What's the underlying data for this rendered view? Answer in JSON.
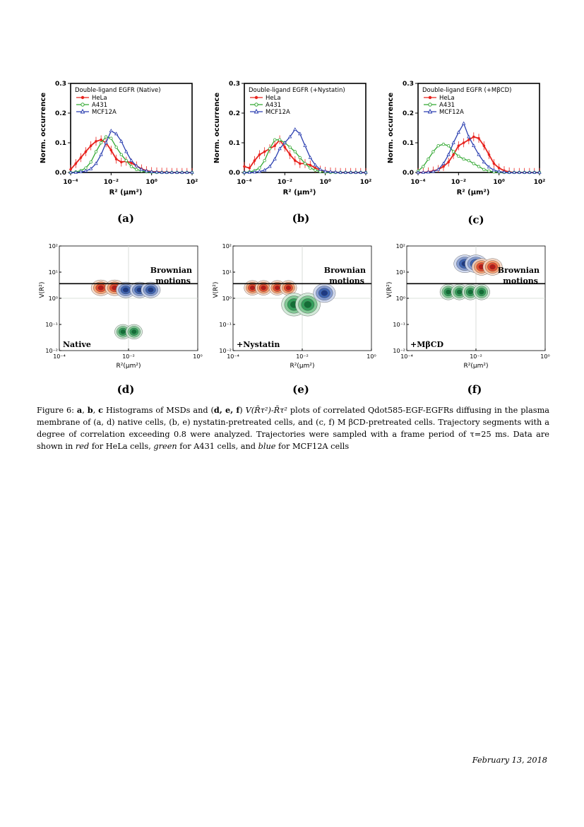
{
  "histograms": {
    "ylabel": "Norm. occurrence",
    "xlabel": "R² (μm²)",
    "yticks": [
      "0.0",
      "0.1",
      "0.2",
      "0.3"
    ],
    "xticks": [
      "10⁻⁴",
      "10⁻²",
      "10⁰",
      "10²"
    ],
    "legend": [
      "HeLa",
      "A431",
      "MCF12A"
    ],
    "colors": {
      "HeLa": "#e8241f",
      "A431": "#32a832",
      "MCF12A": "#2b3fb0"
    },
    "panels": [
      {
        "id": "a",
        "label": "(a)",
        "title": "Double-ligand EGFR (Native)"
      },
      {
        "id": "b",
        "label": "(b)",
        "title": "Double-ligand EGFR (+Nystatin)"
      },
      {
        "id": "c",
        "label": "(c)",
        "title": "Double-ligand EGFR (+MβCD)"
      }
    ]
  },
  "chart_data": [
    {
      "type": "line",
      "panel": "a",
      "title": "Double-ligand EGFR (Native)",
      "xlabel": "R² (μm²)",
      "ylabel": "Norm. occurrence",
      "xscale": "log",
      "xlim": [
        0.0001,
        100
      ],
      "ylim": [
        0,
        0.3
      ],
      "legend": "top-left",
      "series": [
        {
          "name": "HeLa",
          "x": [
            0.0001,
            0.00018,
            0.00032,
            0.00056,
            0.001,
            0.0018,
            0.0032,
            0.0056,
            0.01,
            0.018,
            0.032,
            0.056,
            0.1,
            0.18,
            0.32,
            0.56,
            1,
            1.8,
            3.2,
            5.6,
            10,
            18,
            32,
            56,
            100
          ],
          "y": [
            0.01,
            0.03,
            0.05,
            0.07,
            0.09,
            0.105,
            0.11,
            0.1,
            0.075,
            0.045,
            0.035,
            0.038,
            0.032,
            0.022,
            0.012,
            0.006,
            0.003,
            0.002,
            0.001,
            0.001,
            0,
            0,
            0,
            0,
            0
          ]
        },
        {
          "name": "A431",
          "x": [
            0.0001,
            0.00018,
            0.00032,
            0.00056,
            0.001,
            0.0018,
            0.0032,
            0.0056,
            0.01,
            0.018,
            0.032,
            0.056,
            0.1,
            0.18,
            0.32,
            0.56,
            1,
            1.8,
            3.2,
            5.6,
            10,
            18,
            32,
            56,
            100
          ],
          "y": [
            0,
            0.002,
            0.006,
            0.015,
            0.035,
            0.07,
            0.1,
            0.12,
            0.115,
            0.085,
            0.06,
            0.04,
            0.02,
            0.01,
            0.005,
            0.002,
            0.001,
            0,
            0,
            0,
            0,
            0,
            0,
            0,
            0
          ]
        },
        {
          "name": "MCF12A",
          "x": [
            0.0001,
            0.00018,
            0.00032,
            0.00056,
            0.001,
            0.0018,
            0.0032,
            0.0056,
            0.01,
            0.018,
            0.032,
            0.056,
            0.1,
            0.18,
            0.32,
            0.56,
            1,
            1.8,
            3.2,
            5.6,
            10,
            18,
            32,
            56,
            100
          ],
          "y": [
            0,
            0,
            0.002,
            0.005,
            0.012,
            0.03,
            0.06,
            0.1,
            0.14,
            0.13,
            0.105,
            0.07,
            0.04,
            0.022,
            0.01,
            0.005,
            0.002,
            0.001,
            0,
            0,
            0,
            0,
            0,
            0,
            0
          ]
        }
      ]
    },
    {
      "type": "line",
      "panel": "b",
      "title": "Double-ligand EGFR (+Nystatin)",
      "xlabel": "R² (μm²)",
      "ylabel": "Norm. occurrence",
      "xscale": "log",
      "xlim": [
        0.0001,
        100
      ],
      "ylim": [
        0,
        0.3
      ],
      "legend": "top-left",
      "series": [
        {
          "name": "HeLa",
          "x": [
            0.0001,
            0.00018,
            0.00032,
            0.00056,
            0.001,
            0.0018,
            0.0032,
            0.0056,
            0.01,
            0.018,
            0.032,
            0.056,
            0.1,
            0.18,
            0.32,
            0.56,
            1,
            1.8,
            3.2,
            5.6,
            10,
            18,
            32,
            56,
            100
          ],
          "y": [
            0.02,
            0.015,
            0.04,
            0.06,
            0.07,
            0.08,
            0.09,
            0.11,
            0.085,
            0.06,
            0.04,
            0.03,
            0.03,
            0.025,
            0.015,
            0.008,
            0.004,
            0.002,
            0.001,
            0,
            0,
            0,
            0,
            0,
            0
          ]
        },
        {
          "name": "A431",
          "x": [
            0.0001,
            0.00018,
            0.00032,
            0.00056,
            0.001,
            0.0018,
            0.0032,
            0.0056,
            0.01,
            0.018,
            0.032,
            0.056,
            0.1,
            0.18,
            0.32,
            0.56,
            1,
            1.8,
            3.2,
            5.6,
            10,
            18,
            32,
            56,
            100
          ],
          "y": [
            0,
            0.002,
            0.006,
            0.015,
            0.04,
            0.08,
            0.11,
            0.11,
            0.1,
            0.085,
            0.07,
            0.05,
            0.03,
            0.015,
            0.008,
            0.003,
            0.001,
            0,
            0,
            0,
            0,
            0,
            0,
            0,
            0
          ]
        },
        {
          "name": "MCF12A",
          "x": [
            0.0001,
            0.00018,
            0.00032,
            0.00056,
            0.001,
            0.0018,
            0.0032,
            0.0056,
            0.01,
            0.018,
            0.032,
            0.056,
            0.1,
            0.18,
            0.32,
            0.56,
            1,
            1.8,
            3.2,
            5.6,
            10,
            18,
            32,
            56,
            100
          ],
          "y": [
            0,
            0,
            0.001,
            0.003,
            0.008,
            0.02,
            0.045,
            0.08,
            0.1,
            0.12,
            0.145,
            0.13,
            0.09,
            0.05,
            0.025,
            0.01,
            0.004,
            0.002,
            0.001,
            0,
            0,
            0,
            0,
            0,
            0
          ]
        }
      ]
    },
    {
      "type": "line",
      "panel": "c",
      "title": "Double-ligand EGFR (+MβCD)",
      "xlabel": "R² (μm²)",
      "ylabel": "Norm. occurrence",
      "xscale": "log",
      "xlim": [
        0.0001,
        100
      ],
      "ylim": [
        0,
        0.3
      ],
      "legend": "top-left",
      "series": [
        {
          "name": "HeLa",
          "x": [
            0.0001,
            0.00018,
            0.00032,
            0.00056,
            0.001,
            0.0018,
            0.0032,
            0.0056,
            0.01,
            0.018,
            0.032,
            0.056,
            0.1,
            0.18,
            0.32,
            0.56,
            1,
            1.8,
            3.2,
            5.6,
            10,
            18,
            32,
            56,
            100
          ],
          "y": [
            0,
            0,
            0.002,
            0.005,
            0.01,
            0.02,
            0.035,
            0.06,
            0.09,
            0.1,
            0.11,
            0.12,
            0.115,
            0.09,
            0.06,
            0.03,
            0.015,
            0.006,
            0.002,
            0,
            0,
            0,
            0,
            0,
            0
          ]
        },
        {
          "name": "A431",
          "x": [
            0.0001,
            0.00018,
            0.00032,
            0.00056,
            0.001,
            0.0018,
            0.0032,
            0.0056,
            0.01,
            0.018,
            0.032,
            0.056,
            0.1,
            0.18,
            0.32,
            0.56,
            1,
            1.8,
            3.2,
            5.6,
            10,
            18,
            32,
            56,
            100
          ],
          "y": [
            0.005,
            0.02,
            0.045,
            0.07,
            0.09,
            0.095,
            0.09,
            0.07,
            0.055,
            0.045,
            0.04,
            0.03,
            0.02,
            0.01,
            0.005,
            0.002,
            0.001,
            0,
            0,
            0,
            0,
            0,
            0,
            0,
            0
          ]
        },
        {
          "name": "MCF12A",
          "x": [
            0.0001,
            0.00018,
            0.00032,
            0.00056,
            0.001,
            0.0018,
            0.0032,
            0.0056,
            0.01,
            0.018,
            0.032,
            0.056,
            0.1,
            0.18,
            0.32,
            0.56,
            1,
            1.8,
            3.2,
            5.6,
            10,
            18,
            32,
            56,
            100
          ],
          "y": [
            0,
            0,
            0.001,
            0.003,
            0.01,
            0.03,
            0.06,
            0.1,
            0.135,
            0.165,
            0.12,
            0.09,
            0.06,
            0.035,
            0.018,
            0.008,
            0.003,
            0.001,
            0,
            0,
            0,
            0,
            0,
            0,
            0
          ]
        }
      ]
    }
  ],
  "contours": {
    "ylabel": "V(R²)",
    "xlabel": "R²(μm²)",
    "yticks": [
      "10⁻²",
      "10⁻¹",
      "10⁰",
      "10¹",
      "10²"
    ],
    "xticks": [
      "10⁻⁴",
      "10⁻²",
      "10⁰"
    ],
    "brownian": [
      "Brownian",
      "motions"
    ],
    "panels": [
      {
        "id": "d",
        "label": "(d)",
        "inset": "Native"
      },
      {
        "id": "e",
        "label": "(e)",
        "inset": "+Nystatin"
      },
      {
        "id": "f",
        "label": "(f)",
        "inset": "+MβCD"
      }
    ]
  },
  "caption": {
    "fig_label": "Figure 6:",
    "line1_pre": "a",
    "line1_b": "b",
    "line1_c": "c",
    "line1_text": "Histograms of MSDs and",
    "line1_def": "d, e, f",
    "line1_formula": "V(R̄τ²)-R̄τ²",
    "line1_rest": "plots of correlated Qdot585-EGF-EGFRs diffusing",
    "line2": "in the plasma membrane of (a, d) native cells, (b, e) nystatin-pretreated cells, and (c, f) M βCD-pretreated cells.",
    "line3": "Trajectory segments with a degree of correlation exceeding 0.8 were analyzed. Trajectories were sampled with a frame",
    "line4_a": "period of τ=25 ms. Data are shown in",
    "red": "red",
    "line4_b": "for HeLa cells,",
    "green": "green",
    "line4_c": "for A431 cells, and",
    "blue": "blue",
    "line4_d": "for MCF12A cells"
  },
  "footer": {
    "date": "February 13, 2018"
  }
}
